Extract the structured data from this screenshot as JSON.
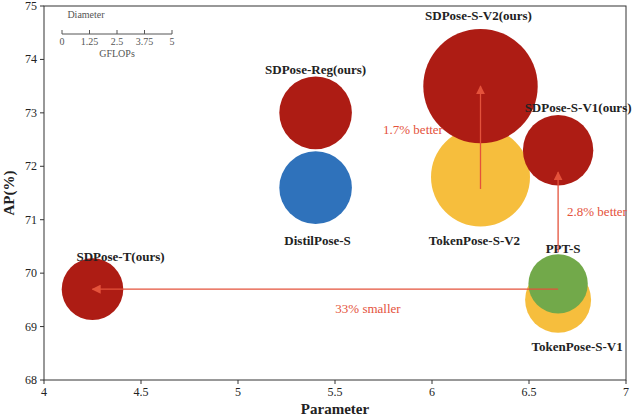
{
  "chart_data": {
    "type": "bubble",
    "x_label": "Parameter",
    "y_label": "AP(%)",
    "labels": [
      "TokenPose-S-V1",
      "PPT-S",
      "TokenPose-S-V2",
      "SDPose-S-V2(ours)",
      "DistilPose-S",
      "SDPose-Reg(ours)",
      "SDPose-S-V1(ours)",
      "SDPose-T(ours)"
    ],
    "x": [
      6.65,
      6.65,
      6.25,
      6.25,
      5.4,
      5.4,
      6.65,
      4.25
    ],
    "values": [
      69.5,
      69.8,
      71.8,
      73.5,
      71.6,
      73.0,
      72.3,
      69.7
    ],
    "sizes": [
      3.0,
      2.7,
      4.5,
      5.2,
      3.3,
      3.3,
      3.2,
      2.8
    ],
    "colors": [
      "#f6be3d",
      "#72a94a",
      "#f6be3d",
      "#ad1c14",
      "#2f72bb",
      "#ad1c14",
      "#ad1c14",
      "#ad1c14"
    ],
    "xlim": [
      4,
      7
    ],
    "xticks": [
      4,
      4.5,
      5,
      5.5,
      6,
      6.5,
      7
    ],
    "ylim": [
      68,
      75
    ],
    "yticks": [
      68,
      69,
      70,
      71,
      72,
      73,
      74,
      75
    ],
    "grid": false,
    "size_legend": {
      "title": "Diameter",
      "ticks": [
        0,
        1.25,
        2.5,
        3.75,
        5
      ],
      "unit": "GFLOPs"
    },
    "annotations": [
      "1.7% better",
      "2.8% better",
      "33% smaller"
    ]
  }
}
